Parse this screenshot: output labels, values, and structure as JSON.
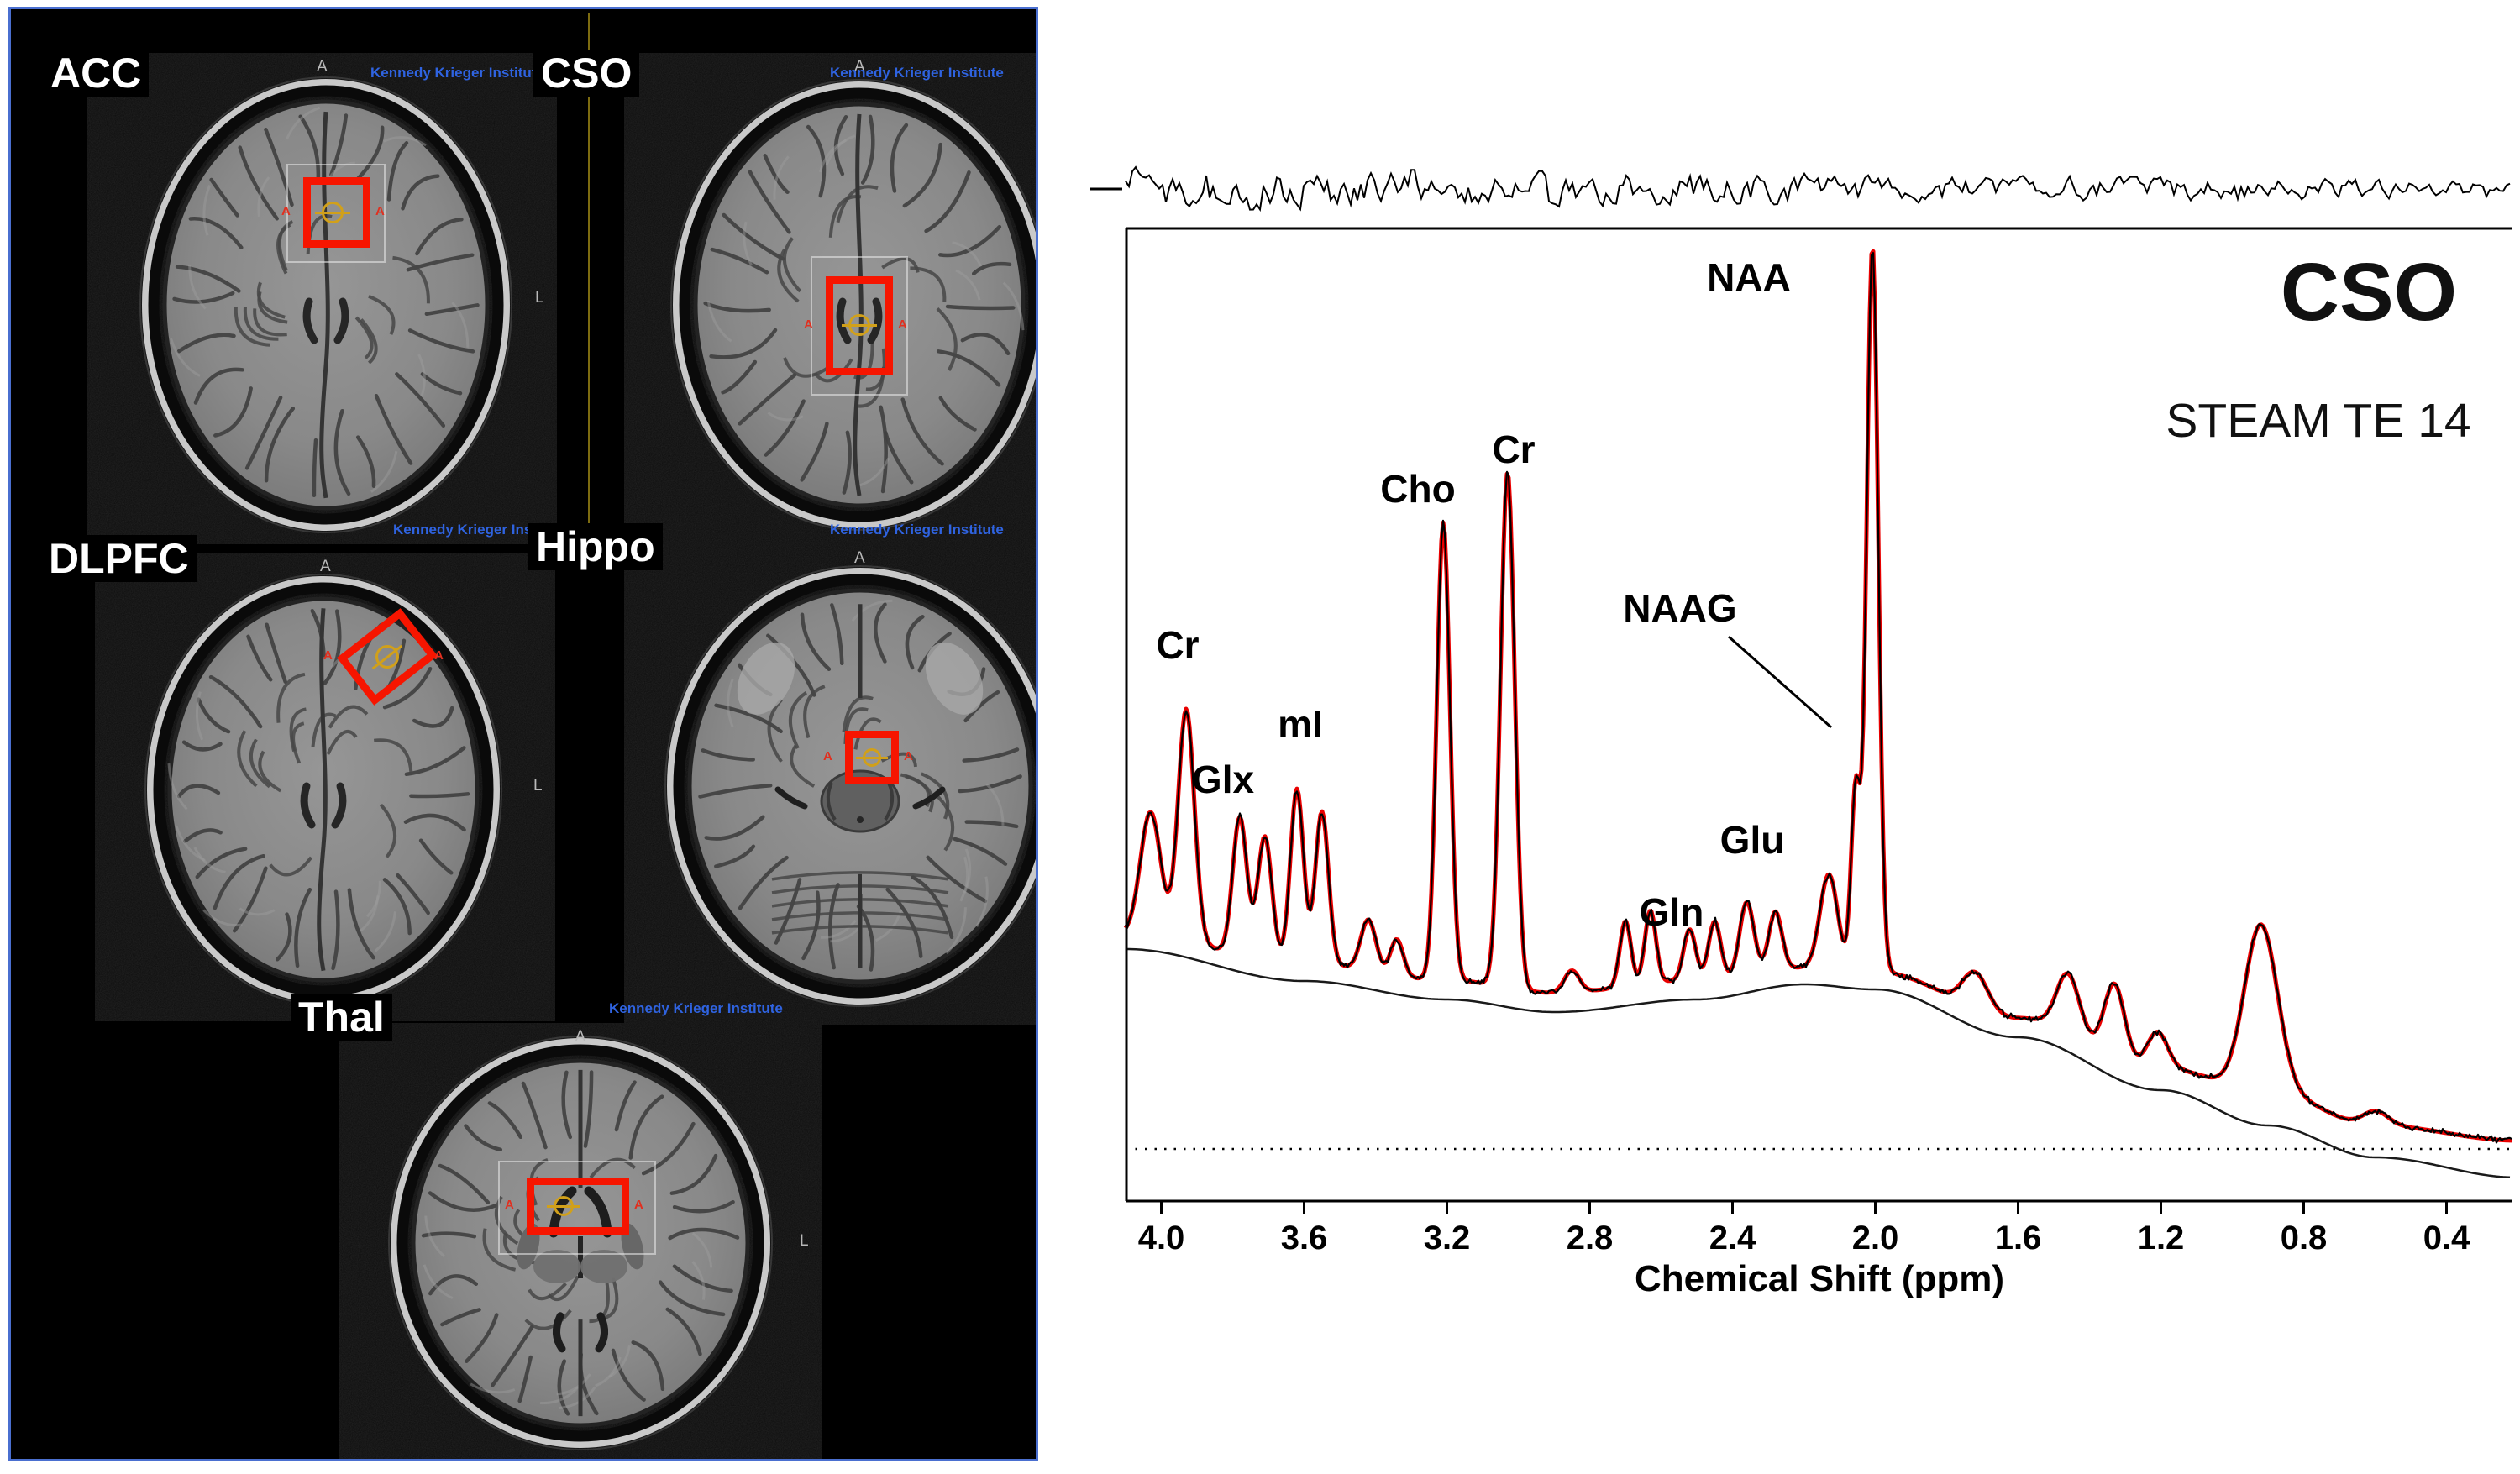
{
  "mri_panel": {
    "watermark": "Kennedy Krieger Institute",
    "border_color": "#4a6fd0",
    "voxel_color": "#f61500",
    "marker_color": "#d1a01a",
    "watermark_color": "#2f63e0",
    "regions": [
      {
        "id": "acc",
        "label": "ACC"
      },
      {
        "id": "cso",
        "label": "CSO"
      },
      {
        "id": "dlpfc",
        "label": "DLPFC"
      },
      {
        "id": "hippo",
        "label": "Hippo"
      },
      {
        "id": "thal",
        "label": "Thal"
      }
    ],
    "orientation": {
      "anterior": "A",
      "left": "L"
    }
  },
  "spectrum": {
    "title": "CSO",
    "subtitle": "STEAM TE 14",
    "xlabel": "Chemical Shift (ppm)",
    "fit_color": "#e80000",
    "data_color": "#000000"
  },
  "chart_data": {
    "type": "line",
    "title": "CSO",
    "subtitle": "STEAM TE 14",
    "xlabel": "Chemical Shift (ppm)",
    "ylabel": "",
    "x_axis": {
      "reversed": true,
      "range": [
        4.1,
        0.2
      ],
      "ticks": [
        4.0,
        3.6,
        3.2,
        2.8,
        2.4,
        2.0,
        1.6,
        1.2,
        0.8,
        0.4
      ]
    },
    "y_axis": {
      "visible": false
    },
    "grid": false,
    "legend": false,
    "traces": [
      "residual (top)",
      "acquired data (black)",
      "LCModel-style fit (red)",
      "smooth baseline (thin black)",
      "dotted zero line"
    ],
    "peak_labels": [
      {
        "text": "Cr",
        "ppm": 3.93
      },
      {
        "text": "Glx",
        "ppm": 3.75
      },
      {
        "text": "mI",
        "ppm": 3.59
      },
      {
        "text": "Cho",
        "ppm": 3.21
      },
      {
        "text": "Cr",
        "ppm": 3.03
      },
      {
        "text": "NAA",
        "ppm": 2.01
      },
      {
        "text": "NAAG",
        "ppm": 2.05
      },
      {
        "text": "Gln",
        "ppm": 2.45
      },
      {
        "text": "Glu",
        "ppm": 2.35
      }
    ],
    "peaks": [
      {
        "ppm": 4.03,
        "rel_amplitude": 0.17,
        "width_ppm": 0.04,
        "assignment": ""
      },
      {
        "ppm": 3.93,
        "rel_amplitude": 0.32,
        "width_ppm": 0.032,
        "assignment": "Cr"
      },
      {
        "ppm": 3.78,
        "rel_amplitude": 0.19,
        "width_ppm": 0.028,
        "assignment": "Glx"
      },
      {
        "ppm": 3.71,
        "rel_amplitude": 0.17,
        "width_ppm": 0.028,
        "assignment": "Glx"
      },
      {
        "ppm": 3.62,
        "rel_amplitude": 0.24,
        "width_ppm": 0.026,
        "assignment": "mI"
      },
      {
        "ppm": 3.55,
        "rel_amplitude": 0.21,
        "width_ppm": 0.026,
        "assignment": "mI"
      },
      {
        "ppm": 3.42,
        "rel_amplitude": 0.07,
        "width_ppm": 0.03,
        "assignment": ""
      },
      {
        "ppm": 3.34,
        "rel_amplitude": 0.05,
        "width_ppm": 0.025,
        "assignment": ""
      },
      {
        "ppm": 3.21,
        "rel_amplitude": 0.63,
        "width_ppm": 0.026,
        "assignment": "Cho"
      },
      {
        "ppm": 3.03,
        "rel_amplitude": 0.71,
        "width_ppm": 0.028,
        "assignment": "Cr"
      },
      {
        "ppm": 2.85,
        "rel_amplitude": 0.03,
        "width_ppm": 0.03,
        "assignment": ""
      },
      {
        "ppm": 2.7,
        "rel_amplitude": 0.09,
        "width_ppm": 0.022,
        "assignment": ""
      },
      {
        "ppm": 2.63,
        "rel_amplitude": 0.1,
        "width_ppm": 0.022,
        "assignment": ""
      },
      {
        "ppm": 2.52,
        "rel_amplitude": 0.07,
        "width_ppm": 0.024,
        "assignment": "Gln"
      },
      {
        "ppm": 2.45,
        "rel_amplitude": 0.08,
        "width_ppm": 0.024,
        "assignment": "Gln"
      },
      {
        "ppm": 2.36,
        "rel_amplitude": 0.1,
        "width_ppm": 0.028,
        "assignment": "Glu"
      },
      {
        "ppm": 2.28,
        "rel_amplitude": 0.08,
        "width_ppm": 0.026,
        "assignment": "Glu"
      },
      {
        "ppm": 2.13,
        "rel_amplitude": 0.13,
        "width_ppm": 0.035,
        "assignment": ""
      },
      {
        "ppm": 2.055,
        "rel_amplitude": 0.25,
        "width_ppm": 0.018,
        "assignment": "NAAG"
      },
      {
        "ppm": 2.008,
        "rel_amplitude": 1.0,
        "width_ppm": 0.023,
        "assignment": "NAA"
      },
      {
        "ppm": 1.72,
        "rel_amplitude": 0.05,
        "width_ppm": 0.05,
        "assignment": ""
      },
      {
        "ppm": 1.46,
        "rel_amplitude": 0.08,
        "width_ppm": 0.045,
        "assignment": ""
      },
      {
        "ppm": 1.33,
        "rel_amplitude": 0.1,
        "width_ppm": 0.04,
        "assignment": ""
      },
      {
        "ppm": 1.21,
        "rel_amplitude": 0.05,
        "width_ppm": 0.04,
        "assignment": ""
      },
      {
        "ppm": 0.92,
        "rel_amplitude": 0.23,
        "width_ppm": 0.065,
        "assignment": ""
      },
      {
        "ppm": 0.6,
        "rel_amplitude": 0.02,
        "width_ppm": 0.05,
        "assignment": ""
      }
    ]
  }
}
